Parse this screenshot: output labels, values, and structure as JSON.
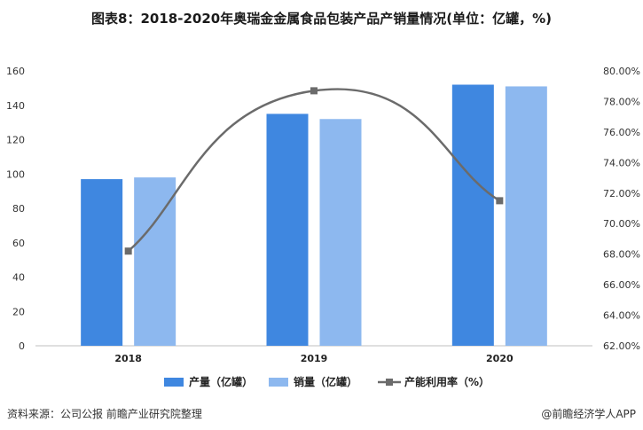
{
  "chart_data": {
    "type": "bar",
    "title": "图表8：2018-2020年奥瑞金金属食品包装产品产销量情况(单位：亿罐，%)",
    "categories": [
      "2018",
      "2019",
      "2020"
    ],
    "series": [
      {
        "name": "产量（亿罐）",
        "type": "bar",
        "axis": "left",
        "color": "#3f87e0",
        "values": [
          97,
          135,
          152
        ]
      },
      {
        "name": "销量（亿罐）",
        "type": "bar",
        "axis": "left",
        "color": "#8db8ef",
        "values": [
          98,
          132,
          151
        ]
      },
      {
        "name": "产能利用率（%）",
        "type": "line",
        "axis": "right",
        "color": "#6b6b6b",
        "values": [
          68.2,
          78.7,
          71.5
        ]
      }
    ],
    "y_left": {
      "min": 0,
      "max": 160,
      "step": 20,
      "tick_labels": [
        "0",
        "20",
        "40",
        "60",
        "80",
        "100",
        "120",
        "140",
        "160"
      ]
    },
    "y_right": {
      "min": 62,
      "max": 80,
      "step": 2,
      "tick_labels": [
        "62.00%",
        "64.00%",
        "66.00%",
        "68.00%",
        "70.00%",
        "72.00%",
        "74.00%",
        "76.00%",
        "78.00%",
        "80.00%"
      ]
    },
    "grid": false,
    "legend_position": "bottom"
  },
  "footer": {
    "source": "资料来源：公司公报 前瞻产业研究院整理",
    "credit": "@前瞻经济学人APP"
  }
}
